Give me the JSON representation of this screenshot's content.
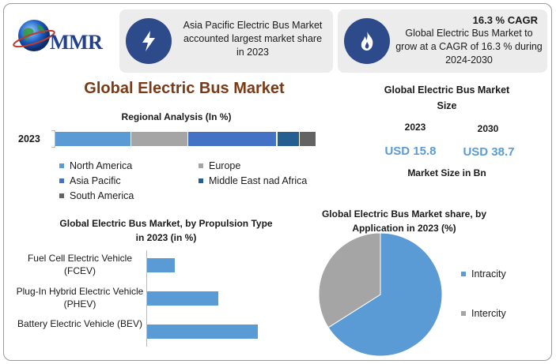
{
  "brand": {
    "name": "MMR"
  },
  "card_left": {
    "icon": "lightning-icon",
    "text": "Asia Pacific Electric Bus Market accounted largest market share in 2023"
  },
  "card_right": {
    "icon": "fire-icon",
    "headline": "16.3 % CAGR",
    "text": "Global Electric Bus Market to grow at a CAGR of 16.3 % during 2024-2030"
  },
  "title": "Global Electric Bus Market",
  "market_size": {
    "title": "Global Electric Bus Market Size",
    "year_a": "2023",
    "year_b": "2030",
    "value_a": "USD 15.8",
    "value_b": "USD 38.7",
    "unit_label": "Market Size in Bn"
  },
  "colors": {
    "accent": "#5b9bd5",
    "north_america": "#5b9bd5",
    "europe": "#a5a5a5",
    "asia_pacific": "#4472c4",
    "mea": "#255e91",
    "south_america": "#636363",
    "title": "#7a3a16",
    "icon_bg": "#2d4a8a"
  },
  "chart_data": [
    {
      "type": "bar",
      "orientation": "horizontal-stacked",
      "title": "Regional Analysis (In %)",
      "categories": [
        "2023"
      ],
      "series": [
        {
          "name": "North America",
          "values": [
            29
          ]
        },
        {
          "name": "Europe",
          "values": [
            22
          ]
        },
        {
          "name": "Asia Pacific",
          "values": [
            34
          ]
        },
        {
          "name": "Middle East nad Africa",
          "values": [
            8.5
          ]
        },
        {
          "name": "South America",
          "values": [
            6.5
          ]
        }
      ],
      "xlim": [
        0,
        100
      ],
      "legend": "bottom"
    },
    {
      "type": "bar",
      "orientation": "horizontal",
      "title": "Global Electric Bus Market, by Propulsion Type in 2023 (in %)",
      "categories": [
        "Fuel Cell Electric Vehicle (FCEV)",
        "Plug-In Hybrid Electric Vehicle (PHEV)",
        "Battery Electric Vehicle (BEV)"
      ],
      "values": [
        14,
        36,
        56
      ],
      "xlim": [
        0,
        100
      ]
    },
    {
      "type": "pie",
      "title": "Global Electric Bus Market share, by Application in 2023  (%)",
      "categories": [
        "Intracity",
        "Intercity"
      ],
      "values": [
        66,
        34
      ],
      "legend": "right"
    }
  ]
}
